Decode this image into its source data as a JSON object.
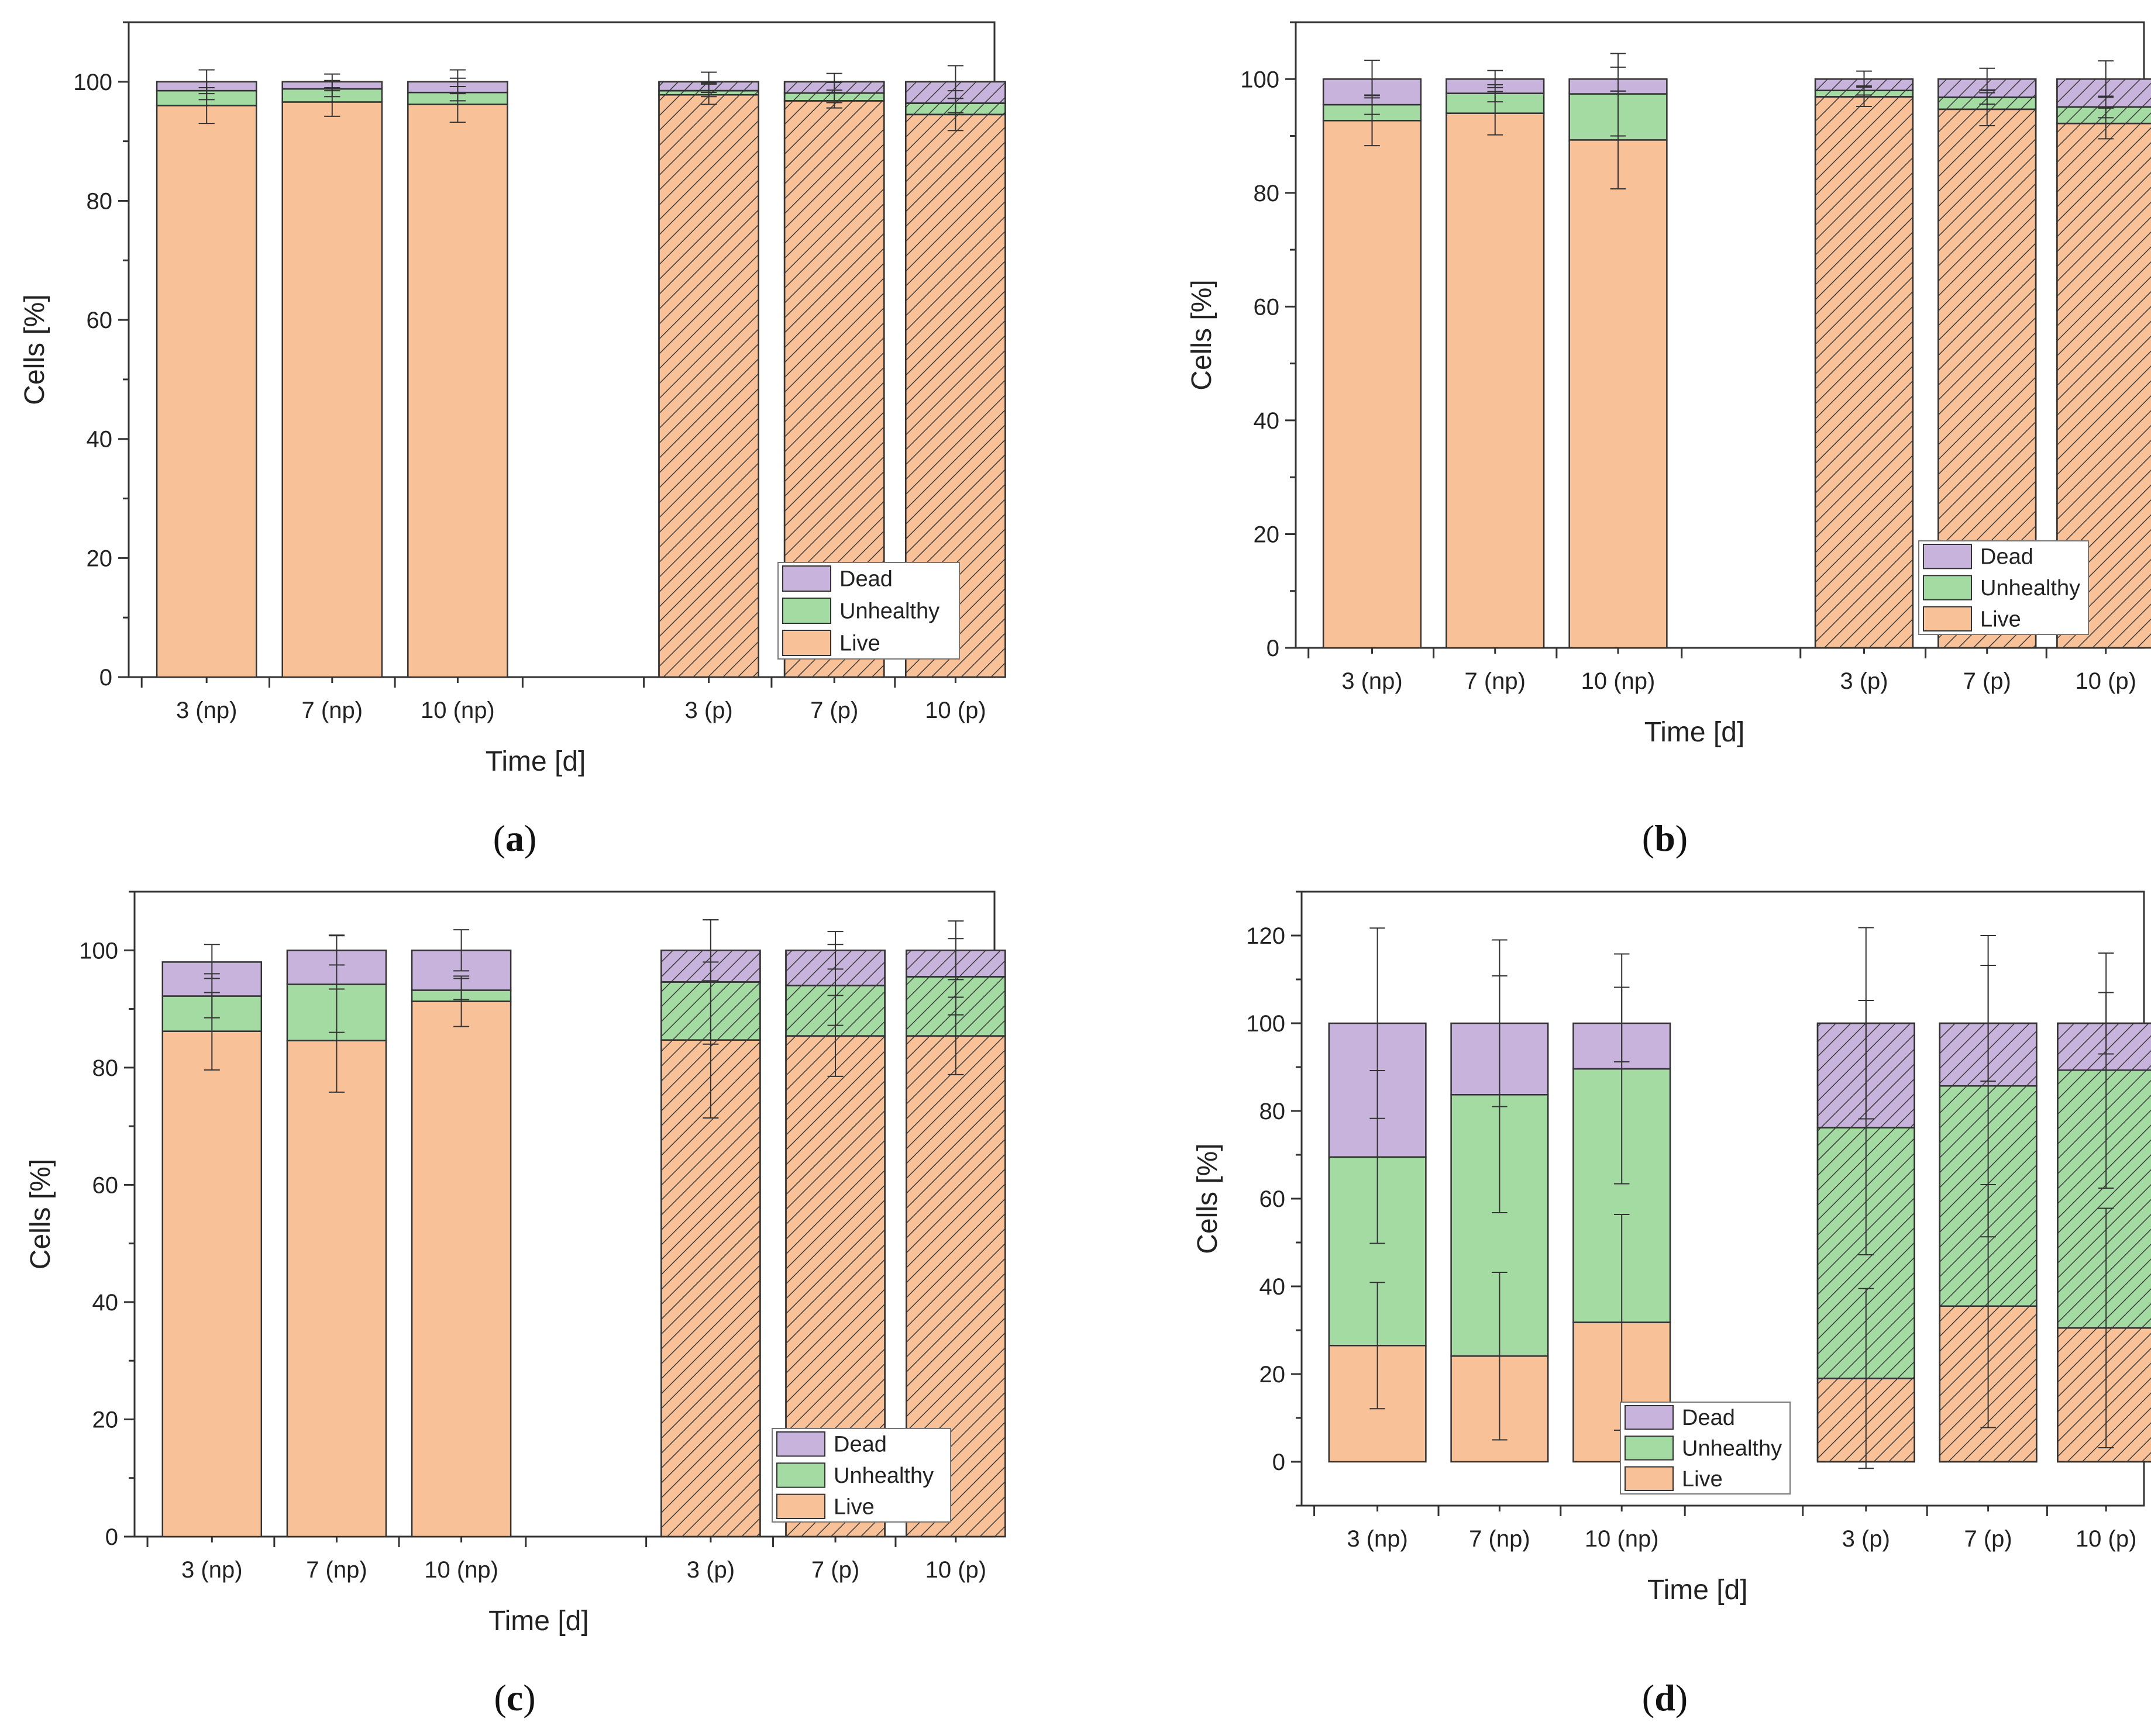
{
  "categories": [
    "3 (np)",
    "7 (np)",
    "10 (np)",
    "3 (p)",
    "7 (p)",
    "10 (p)"
  ],
  "patterned": [
    false,
    false,
    false,
    true,
    true,
    true
  ],
  "colors": {
    "Live": "#f9c198",
    "Unhealthy": "#a3dba3",
    "Dead": "#c7b3dc",
    "hatch": "#3a3a3a",
    "axis": "#333333"
  },
  "legend": [
    "Dead",
    "Unhealthy",
    "Live"
  ],
  "chart_data": [
    {
      "type": "bar",
      "stacked": true,
      "panel": "a",
      "xlabel": "Time [d]",
      "ylabel": "Cells [%]",
      "ylim": [
        0,
        110
      ],
      "yticks": [
        0,
        20,
        40,
        60,
        80,
        100
      ],
      "legend_position": "bottom-right",
      "categories": [
        "3 (np)",
        "7 (np)",
        "10 (np)",
        "3 (p)",
        "7 (p)",
        "10 (p)"
      ],
      "series": [
        {
          "name": "Live",
          "values": [
            96.0,
            96.6,
            96.2,
            97.8,
            96.8,
            94.5
          ],
          "error": [
            [
              93.0,
              99.0
            ],
            [
              94.2,
              99.0
            ],
            [
              93.2,
              99.2
            ],
            [
              96.2,
              99.6
            ],
            [
              95.6,
              98.2
            ],
            [
              91.8,
              97.2
            ]
          ]
        },
        {
          "name": "Unhealthy",
          "values": [
            2.5,
            2.2,
            2.0,
            0.7,
            1.3,
            1.9
          ],
          "error": [
            [
              97.0,
              100.0
            ],
            [
              97.5,
              100.2
            ],
            [
              96.8,
              100.6
            ],
            [
              97.5,
              99.8
            ],
            [
              96.5,
              99.9
            ],
            [
              94.8,
              98.5
            ]
          ]
        },
        {
          "name": "Dead",
          "values": [
            1.5,
            1.2,
            1.8,
            1.5,
            1.9,
            3.6
          ],
          "error": [
            [
              98.0,
              102.0
            ],
            [
              98.5,
              101.3
            ],
            [
              98.0,
              102.0
            ],
            [
              98.2,
              101.6
            ],
            [
              98.6,
              101.4
            ],
            [
              97.2,
              102.7
            ]
          ]
        }
      ]
    },
    {
      "type": "bar",
      "stacked": true,
      "panel": "b",
      "xlabel": "Time [d]",
      "ylabel": "Cells [%]",
      "ylim": [
        0,
        110
      ],
      "yticks": [
        0,
        20,
        40,
        60,
        80,
        100
      ],
      "legend_position": "bottom-right",
      "categories": [
        "3 (np)",
        "7 (np)",
        "10 (np)",
        "3 (p)",
        "7 (p)",
        "10 (p)"
      ],
      "series": [
        {
          "name": "Live",
          "values": [
            92.7,
            94.0,
            89.3,
            96.9,
            94.7,
            92.2
          ],
          "error": [
            [
              88.3,
              97.1
            ],
            [
              90.2,
              97.8
            ],
            [
              80.7,
              97.9
            ],
            [
              95.2,
              98.6
            ],
            [
              91.8,
              97.6
            ],
            [
              89.5,
              94.9
            ]
          ]
        },
        {
          "name": "Unhealthy",
          "values": [
            2.8,
            3.5,
            8.1,
            1.1,
            2.1,
            2.9
          ],
          "error": [
            [
              93.8,
              97.2
            ],
            [
              96.0,
              99.0
            ],
            [
              90.0,
              104.5
            ],
            [
              97.2,
              98.8
            ],
            [
              95.6,
              98.0
            ],
            [
              93.2,
              97.0
            ]
          ]
        },
        {
          "name": "Dead",
          "values": [
            4.5,
            2.5,
            2.6,
            2.0,
            3.2,
            4.9
          ],
          "error": [
            [
              96.7,
              103.3
            ],
            [
              98.5,
              101.5
            ],
            [
              97.9,
              102.1
            ],
            [
              98.6,
              101.4
            ],
            [
              98.1,
              101.9
            ],
            [
              96.8,
              103.2
            ]
          ]
        }
      ]
    },
    {
      "type": "bar",
      "stacked": true,
      "panel": "c",
      "xlabel": "Time [d]",
      "ylabel": "Cells [%]",
      "ylim": [
        0,
        110
      ],
      "yticks": [
        0,
        20,
        40,
        60,
        80,
        100
      ],
      "legend_position": "bottom-right",
      "categories": [
        "3 (np)",
        "7 (np)",
        "10 (np)",
        "3 (p)",
        "7 (p)",
        "10 (p)"
      ],
      "series": [
        {
          "name": "Live",
          "values": [
            86.2,
            84.6,
            91.3,
            84.7,
            85.4,
            85.4
          ],
          "error": [
            [
              79.6,
              92.8
            ],
            [
              75.8,
              93.4
            ],
            [
              87.0,
              95.6
            ],
            [
              71.4,
              98.0
            ],
            [
              78.5,
              92.3
            ],
            [
              78.8,
              92.0
            ]
          ]
        },
        {
          "name": "Unhealthy",
          "values": [
            6.0,
            9.6,
            1.9,
            9.9,
            8.6,
            10.1
          ],
          "error": [
            [
              88.5,
              96.0
            ],
            [
              86.0,
              102.6
            ],
            [
              91.6,
              95.2
            ],
            [
              84.0,
              105.2
            ],
            [
              87.2,
              101.0
            ],
            [
              89.0,
              102.0
            ]
          ]
        },
        {
          "name": "Dead",
          "values": [
            5.8,
            5.8,
            6.8,
            5.4,
            6.0,
            4.5
          ],
          "error": [
            [
              95.2,
              101.0
            ],
            [
              97.5,
              102.5
            ],
            [
              96.5,
              103.5
            ],
            [
              94.8,
              105.2
            ],
            [
              96.8,
              103.2
            ],
            [
              95.0,
              105.0
            ]
          ]
        }
      ]
    },
    {
      "type": "bar",
      "stacked": true,
      "panel": "d",
      "xlabel": "Time [d]",
      "ylabel": "Cells [%]",
      "ylim": [
        -10,
        130
      ],
      "yticks": [
        0,
        20,
        40,
        60,
        80,
        100,
        120
      ],
      "legend_position": "bottom-center",
      "categories": [
        "3 (np)",
        "7 (np)",
        "10 (np)",
        "3 (p)",
        "7 (p)",
        "10 (p)"
      ],
      "series": [
        {
          "name": "Live",
          "values": [
            26.5,
            24.1,
            31.8,
            19.0,
            35.5,
            30.5
          ],
          "error": [
            [
              12.1,
              40.9
            ],
            [
              5.0,
              43.2
            ],
            [
              7.2,
              56.4
            ],
            [
              -1.5,
              39.5
            ],
            [
              7.8,
              63.2
            ],
            [
              3.2,
              57.8
            ]
          ]
        },
        {
          "name": "Unhealthy",
          "values": [
            43.0,
            59.6,
            57.8,
            57.2,
            50.2,
            58.8
          ],
          "error": [
            [
              49.8,
              89.2
            ],
            [
              56.8,
              110.8
            ],
            [
              63.4,
              115.8
            ],
            [
              47.2,
              105.2
            ],
            [
              51.3,
              120.0
            ],
            [
              62.4,
              116.0
            ]
          ]
        },
        {
          "name": "Dead",
          "values": [
            30.5,
            16.3,
            10.4,
            23.8,
            14.3,
            10.7
          ],
          "error": [
            [
              78.3,
              121.7
            ],
            [
              81.0,
              119.0
            ],
            [
              91.2,
              108.2
            ],
            [
              78.2,
              121.8
            ],
            [
              86.8,
              113.2
            ],
            [
              93.0,
              107.0
            ]
          ]
        }
      ]
    }
  ],
  "captions": [
    {
      "open": "(",
      "letter": "a",
      "close": ")"
    },
    {
      "open": "(",
      "letter": "b",
      "close": ")"
    },
    {
      "open": "(",
      "letter": "c",
      "close": ")"
    },
    {
      "open": "(",
      "letter": "d",
      "close": ")"
    }
  ]
}
